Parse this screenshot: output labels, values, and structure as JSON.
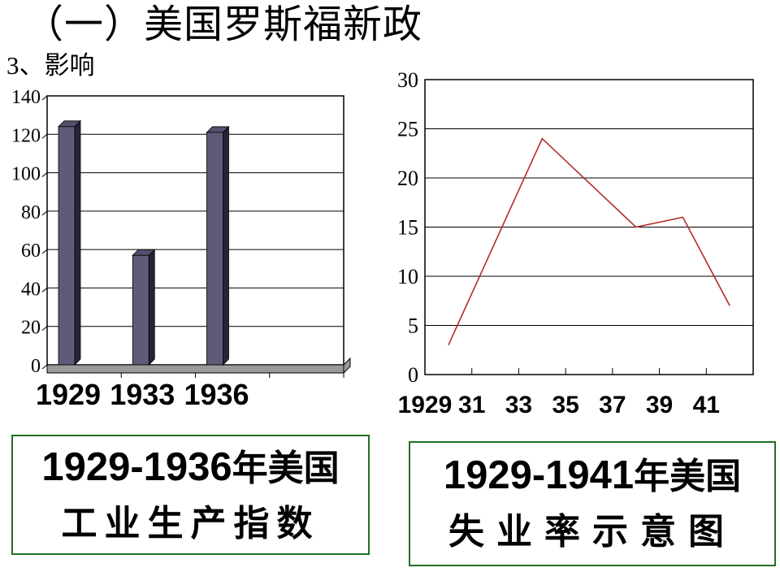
{
  "title": "（一）美国罗斯福新政",
  "subtitle": "3、影响",
  "colors": {
    "caption_border": "#227022",
    "bar_front": "#5F5A79",
    "bar_top": "#55506D",
    "bar_side": "#26233A",
    "floor_gray": "#9A9A9A",
    "line_red": "#B22C2C",
    "axis_black": "#000000"
  },
  "chart_data": [
    {
      "id": "industrial-production",
      "type": "bar",
      "style": "3d-column",
      "title": "1929-1936年美国工业生产指数",
      "categories": [
        "1929",
        "1933",
        "1936"
      ],
      "values": [
        124,
        57,
        121
      ],
      "ylim": [
        0,
        140
      ],
      "yticks": [
        "0",
        "20",
        "40",
        "60",
        "80",
        "100",
        "120",
        "140"
      ],
      "grid": true,
      "legend": "none",
      "bar_color": "#5F5A79"
    },
    {
      "id": "unemployment-rate",
      "type": "line",
      "title": "1929-1941年美国失业率示意图",
      "x": [
        1929,
        1933,
        1937,
        1939,
        1941
      ],
      "values": [
        3,
        24,
        15,
        16,
        7
      ],
      "x_range": [
        1929,
        1941
      ],
      "xtick_labels": [
        "1929",
        "31",
        "33",
        "35",
        "37",
        "39",
        "41"
      ],
      "ylim": [
        0,
        30
      ],
      "yticks": [
        "0",
        "5",
        "10",
        "15",
        "20",
        "25",
        "30"
      ],
      "grid": true,
      "legend": "none",
      "line_color": "#B22C2C"
    }
  ],
  "captions": {
    "left": {
      "line1_num": "1929-1936",
      "line1_cn": "年美国",
      "line2": "工业生产指数"
    },
    "right": {
      "line1_num": "1929-1941",
      "line1_cn": "年美国",
      "line2": "失业率示意图"
    }
  }
}
